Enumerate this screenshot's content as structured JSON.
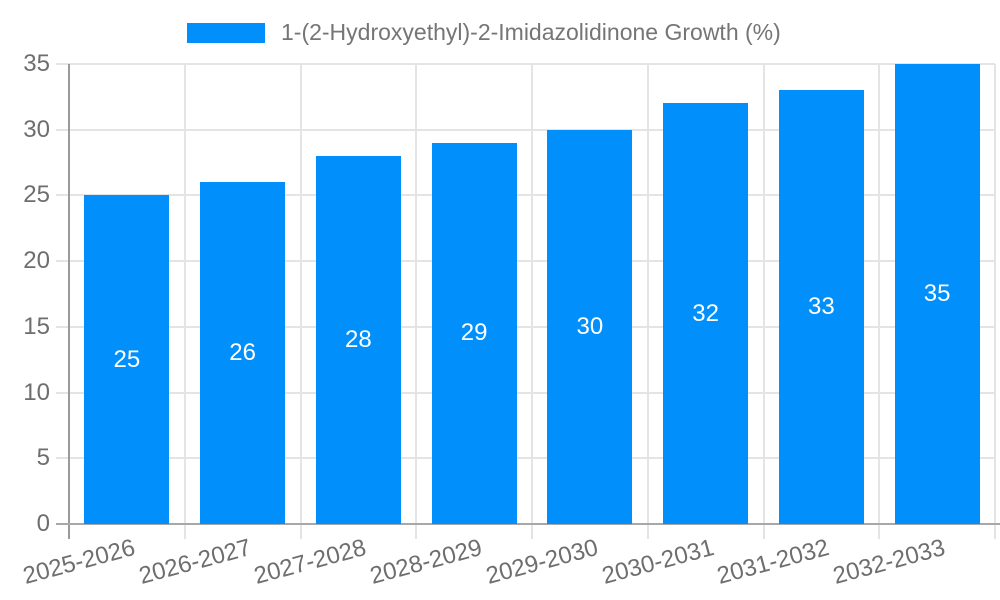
{
  "chart_data": {
    "type": "bar",
    "title": "1-(2-Hydroxyethyl)-2-Imidazolidinone Growth (%)",
    "categories": [
      "2025-2026",
      "2026-2027",
      "2027-2028",
      "2028-2029",
      "2029-2030",
      "2030-2031",
      "2031-2032",
      "2032-2033"
    ],
    "values": [
      25,
      26,
      28,
      29,
      30,
      32,
      33,
      35
    ],
    "xlabel": "",
    "ylabel": "",
    "ylim": [
      0,
      35
    ],
    "yticks": [
      0,
      5,
      10,
      15,
      20,
      25,
      30,
      35
    ],
    "grid": "horizontal-and-vertical",
    "legend_position": "top",
    "x_label_rotation_deg": -15,
    "value_labels_inside_bars": true
  },
  "colors": {
    "bar": "#008FFB",
    "bar_value_label": "#ffffff",
    "axis_label": "#6e6e6e",
    "legend_text": "#757575",
    "gridline": "#e4e4e4",
    "y_axis_line": "#9a9a9a",
    "x_axis_line": "#a8a8a8",
    "background": "#ffffff"
  }
}
